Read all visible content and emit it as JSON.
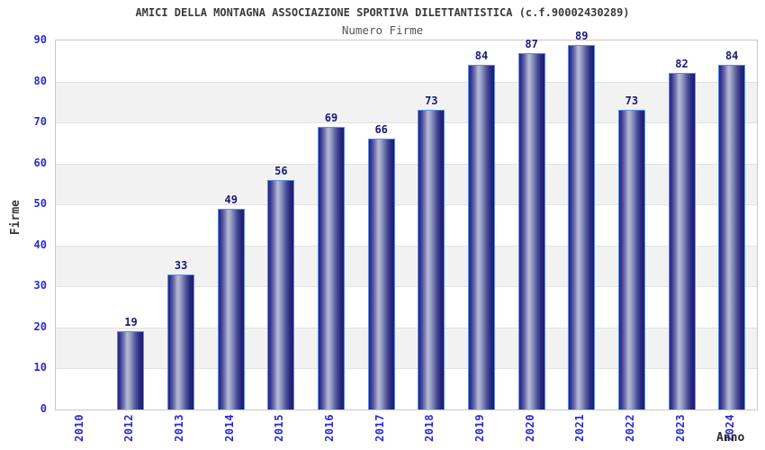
{
  "chart_data": {
    "type": "bar",
    "title": "AMICI DELLA MONTAGNA ASSOCIAZIONE SPORTIVA DILETTANTISTICA (c.f.90002430289)",
    "subtitle": "Numero Firme",
    "xlabel": "Anno",
    "ylabel": "Firme",
    "categories": [
      "2010",
      "2012",
      "2013",
      "2014",
      "2015",
      "2016",
      "2017",
      "2018",
      "2019",
      "2020",
      "2021",
      "2022",
      "2023",
      "2024"
    ],
    "values": [
      null,
      19,
      33,
      49,
      56,
      69,
      66,
      73,
      84,
      87,
      89,
      73,
      82,
      84
    ],
    "ylim": [
      0,
      90
    ],
    "yticks": [
      0,
      10,
      20,
      30,
      40,
      50,
      60,
      70,
      80,
      90
    ],
    "grid": "horizontal-bands",
    "legend": "none",
    "colors": {
      "bar_dark": "#23238a",
      "bar_light": "#b6bad6",
      "bar_border": "#5c8fe6",
      "value_label": "#1a1a78",
      "tick_label": "#2a2ad0",
      "band_gray": "#f2f2f2",
      "band_white": "#ffffff",
      "gridline": "#e2e2e2",
      "plot_border": "#c8c8c8",
      "title": "#3a3a3a",
      "subtitle": "#555555",
      "axis_title": "#2a2a2a"
    }
  }
}
